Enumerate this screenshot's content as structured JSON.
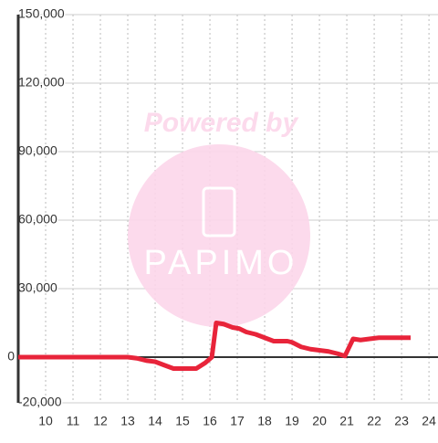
{
  "chart_data": {
    "type": "line",
    "watermark": "Powered by",
    "watermark_logo": "PAPIMO",
    "x": [
      9,
      13,
      13.33,
      13.67,
      14,
      14.33,
      14.67,
      15,
      15.5,
      15.83,
      16.07,
      16.23,
      16.5,
      16.83,
      17.07,
      17.33,
      17.67,
      18,
      18.33,
      18.83,
      19,
      19.33,
      19.67,
      20,
      20.33,
      20.67,
      20.93,
      21.23,
      21.5,
      21.83,
      22.17,
      23.33
    ],
    "series": [
      {
        "color": "#e8243a",
        "values": [
          0,
          0,
          -500,
          -1500,
          -2000,
          -3500,
          -5000,
          -5000,
          -5000,
          -2500,
          0,
          15000,
          14500,
          13000,
          12500,
          11000,
          10000,
          8500,
          7000,
          7000,
          6500,
          4500,
          3500,
          3000,
          2500,
          1500,
          500,
          8000,
          7500,
          8000,
          8500,
          8500
        ]
      }
    ],
    "xlim": [
      9,
      24.33
    ],
    "xticks": [
      10,
      11,
      12,
      13,
      14,
      15,
      16,
      17,
      18,
      19,
      20,
      21,
      22,
      23,
      24
    ],
    "ylim": [
      -20000,
      150000
    ],
    "yticks": [
      {
        "value": -20000,
        "label": "-20,000"
      },
      0,
      {
        "value": 30000,
        "label": "30,000"
      },
      {
        "value": 60000,
        "label": "60,000"
      },
      {
        "value": 90000,
        "label": "90,000"
      },
      {
        "value": 120000,
        "label": "120,000"
      },
      {
        "value": 150000,
        "label": "150,000"
      }
    ],
    "grid": true
  }
}
